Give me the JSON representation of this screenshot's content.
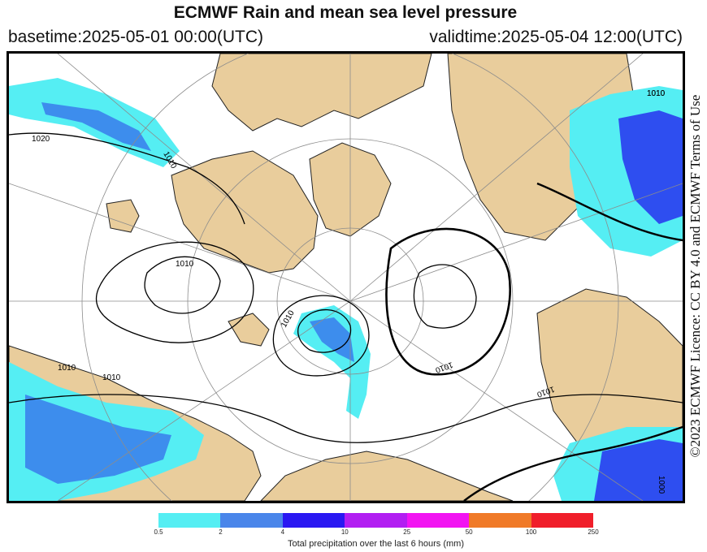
{
  "header": {
    "title": "ECMWF Rain and mean sea level pressure",
    "basetime": "basetime:2025-05-01 00:00(UTC)",
    "validtime": "validtime:2025-05-04 12:00(UTC)"
  },
  "licence": "©2023 ECMWF Licence: CC BY 4.0 and ECMWF Terms of Use",
  "map": {
    "isobar_labels": [
      "1020",
      "1010",
      "1010",
      "1010",
      "1010",
      "1010",
      "1010",
      "1010",
      "1010",
      "1010",
      "1000"
    ],
    "colors": {
      "land": "#e9cd9c",
      "sea": "#ffffff",
      "isobar": "#000000",
      "grid": "#8c8c8c"
    }
  },
  "legend": {
    "colors": [
      "#55eef3",
      "#3d8ded",
      "#2e4ef0",
      "#3a10f0",
      "#a51ff0",
      "#d41af0",
      "#f01af0",
      "#f07a28",
      "#f02828",
      "#e8102a"
    ],
    "display_colors": [
      "#55eef3",
      "#4a86ea",
      "#2a18f2",
      "#b21ef2",
      "#f214f2",
      "#f07a28",
      "#f01e2a"
    ],
    "ticks": [
      "0.5",
      "2",
      "4",
      "10",
      "25",
      "50",
      "100",
      "250"
    ],
    "caption": "Total precipitation over the last 6 hours (mm)"
  }
}
